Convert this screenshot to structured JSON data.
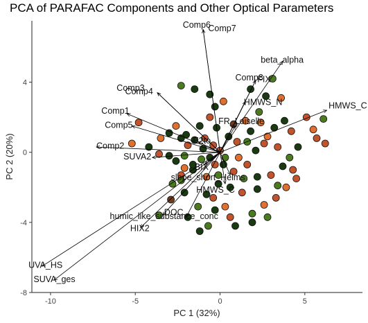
{
  "chart_data": {
    "type": "scatter",
    "title": "PCA of PARAFAC Components and Other Optical Parameters",
    "xlabel": "PC 1 (32%)",
    "ylabel": "PC 2 (20%)",
    "xlim": [
      -11.1,
      8.4
    ],
    "ylim": [
      -8.0,
      7.5
    ],
    "xticks": [
      "-10",
      "-5",
      "0",
      "5"
    ],
    "yticks": [
      "-8",
      "-4",
      "0",
      "4"
    ],
    "grid": false,
    "legend": "none",
    "point_colors": [
      "#1a3a12",
      "#4b7a1f",
      "#c2542d",
      "#e07030",
      "#6e3b1d"
    ],
    "points": [
      [
        -2.3,
        3.8,
        1
      ],
      [
        -1.5,
        3.6,
        0
      ],
      [
        -0.6,
        3.3,
        0
      ],
      [
        -0.3,
        2.6,
        0
      ],
      [
        -4.8,
        1.7,
        2
      ],
      [
        -3.0,
        1.1,
        0
      ],
      [
        -2.6,
        1.5,
        3
      ],
      [
        -5.2,
        0.5,
        3
      ],
      [
        -2.0,
        1.0,
        0
      ],
      [
        -1.5,
        0.7,
        0
      ],
      [
        -0.9,
        0.8,
        2
      ],
      [
        -0.2,
        1.4,
        0
      ],
      [
        0.2,
        2.9,
        3
      ],
      [
        1.8,
        3.6,
        0
      ],
      [
        3.1,
        4.2,
        1
      ],
      [
        2.7,
        3.2,
        0
      ],
      [
        3.6,
        3.1,
        3
      ],
      [
        2.3,
        2.3,
        1
      ],
      [
        2.4,
        1.7,
        3
      ],
      [
        3.2,
        1.4,
        0
      ],
      [
        3.8,
        1.8,
        0
      ],
      [
        4.2,
        1.2,
        2
      ],
      [
        5.1,
        2.0,
        2
      ],
      [
        5.5,
        1.3,
        3
      ],
      [
        6.1,
        1.9,
        1
      ],
      [
        5.7,
        0.8,
        2
      ],
      [
        6.2,
        0.5,
        2
      ],
      [
        4.6,
        0.3,
        0
      ],
      [
        4.1,
        -0.3,
        1
      ],
      [
        4.3,
        -1.0,
        2
      ],
      [
        3.4,
        0.3,
        2
      ],
      [
        2.8,
        0.9,
        3
      ],
      [
        1.8,
        1.2,
        0
      ],
      [
        1.6,
        0.6,
        1
      ],
      [
        2.1,
        0.1,
        0
      ],
      [
        1.1,
        -0.3,
        3
      ],
      [
        1.6,
        -0.7,
        2
      ],
      [
        0.8,
        -1.1,
        2
      ],
      [
        0.2,
        -0.7,
        0
      ],
      [
        1.4,
        -1.5,
        1
      ],
      [
        2.2,
        -1.4,
        0
      ],
      [
        3.0,
        -1.3,
        2
      ],
      [
        3.4,
        -1.9,
        1
      ],
      [
        2.2,
        -2.1,
        0
      ],
      [
        1.3,
        -2.3,
        2
      ],
      [
        0.6,
        -2.0,
        0
      ],
      [
        -0.1,
        -1.8,
        0
      ],
      [
        -0.8,
        -2.4,
        0
      ],
      [
        -0.4,
        -2.6,
        2
      ],
      [
        0.3,
        -3.1,
        3
      ],
      [
        -0.3,
        -3.3,
        0
      ],
      [
        -1.3,
        -3.1,
        1
      ],
      [
        -2.1,
        -2.3,
        0
      ],
      [
        -2.8,
        -1.8,
        1
      ],
      [
        -2.3,
        -1.3,
        2
      ],
      [
        -1.6,
        -1.0,
        0
      ],
      [
        -0.8,
        -1.4,
        3
      ],
      [
        -0.3,
        -0.7,
        2
      ],
      [
        -1.1,
        -0.4,
        1
      ],
      [
        -1.6,
        -0.7,
        0
      ],
      [
        -2.1,
        -0.2,
        1
      ],
      [
        -2.6,
        -0.5,
        0
      ],
      [
        -3.0,
        -0.2,
        0
      ],
      [
        -3.6,
        -0.1,
        2
      ],
      [
        -4.2,
        0.3,
        0
      ],
      [
        -3.5,
        0.8,
        3
      ],
      [
        -0.4,
        0.4,
        2
      ],
      [
        0.0,
        0.1,
        2
      ],
      [
        0.3,
        -0.3,
        1
      ],
      [
        -0.6,
        -0.3,
        0
      ],
      [
        1.0,
        0.6,
        2
      ],
      [
        0.5,
        0.9,
        0
      ],
      [
        -0.1,
        -1.3,
        1
      ],
      [
        -1.0,
        0.2,
        0
      ],
      [
        -1.9,
        0.4,
        2
      ],
      [
        -2.3,
        0.8,
        0
      ],
      [
        1.9,
        -3.5,
        1
      ],
      [
        2.8,
        -3.7,
        1
      ],
      [
        1.9,
        -4.0,
        0
      ],
      [
        0.9,
        -4.2,
        0
      ],
      [
        -0.7,
        -4.2,
        1
      ],
      [
        -1.9,
        -3.7,
        0
      ],
      [
        -3.6,
        -3.6,
        1
      ],
      [
        -1.2,
        -4.5,
        0
      ],
      [
        3.9,
        -2.0,
        3
      ],
      [
        4.5,
        -1.5,
        2
      ],
      [
        3.7,
        -0.8,
        0
      ],
      [
        3.3,
        -2.6,
        2
      ],
      [
        2.6,
        -3.0,
        3
      ],
      [
        -2.1,
        -0.9,
        3
      ],
      [
        -2.3,
        -1.6,
        1
      ],
      [
        0.8,
        1.6,
        4
      ],
      [
        1.5,
        1.8,
        3
      ],
      [
        -0.6,
        2.0,
        2
      ],
      [
        -1.2,
        1.5,
        0
      ],
      [
        2.6,
        0.5,
        2
      ],
      [
        0.6,
        -3.7,
        2
      ],
      [
        -2.9,
        -2.7,
        4
      ]
    ],
    "variables": [
      {
        "name": "Comp6",
        "x": -1.0,
        "y": 7.0
      },
      {
        "name": "Comp7",
        "x": -1.0,
        "y": 7.0
      },
      {
        "name": "beta_alpha",
        "x": 3.7,
        "y": 5.2
      },
      {
        "name": "Comp8",
        "x": 2.1,
        "y": 4.1
      },
      {
        "name": "FIX",
        "x": 2.1,
        "y": 4.1
      },
      {
        "name": "HMWS_N",
        "x": 1.5,
        "y": 2.9
      },
      {
        "name": "HMWS_C",
        "x": 6.3,
        "y": 2.4
      },
      {
        "name": "Comp3",
        "x": -3.7,
        "y": 3.4
      },
      {
        "name": "Comp4",
        "x": -3.7,
        "y": 3.4
      },
      {
        "name": "Comp1",
        "x": -5.5,
        "y": 2.2
      },
      {
        "name": "Comp5",
        "x": -5.2,
        "y": 1.5
      },
      {
        "name": "Comp2",
        "x": -7.3,
        "y": 0.3
      },
      {
        "name": "SUVA254",
        "x": -4.0,
        "y": -0.3
      },
      {
        "name": "E2toE3",
        "x": -1.3,
        "y": 0.6
      },
      {
        "name": "BIX",
        "x": -0.9,
        "y": -0.7
      },
      {
        "name": "HIX",
        "x": -0.9,
        "y": -0.7
      },
      {
        "name": "FR_Loiselle",
        "x": 0.9,
        "y": 1.5
      },
      {
        "name": "slope_short_Helms",
        "x": 0.6,
        "y": -1.3
      },
      {
        "name": "HMWS_C2",
        "x": 0.3,
        "y": -1.8
      },
      {
        "name": "SUVA_HS",
        "x": -10.5,
        "y": -6.5
      },
      {
        "name": "SUVA_ges",
        "x": -9.8,
        "y": -7.3
      },
      {
        "name": "HIX2",
        "x": -4.7,
        "y": -4.3
      },
      {
        "name": "humic_like_substance_conc",
        "x": -3.4,
        "y": -3.6
      },
      {
        "name": "DOC",
        "x": -2.0,
        "y": -3.7
      }
    ]
  },
  "labels": [
    {
      "text": "Comp6",
      "x": -2.2,
      "y": 7.2
    },
    {
      "text": "Comp7",
      "x": -0.7,
      "y": 6.9
    },
    {
      "text": "beta_alpha",
      "x": 2.4,
      "y": 5.1
    },
    {
      "text": "Comp8",
      "x": 0.9,
      "y": 4.1
    },
    {
      "text": "FIX",
      "x": 2.2,
      "y": 4.0
    },
    {
      "text": "HMWS_N",
      "x": 1.4,
      "y": 2.7
    },
    {
      "text": "HMWS_C",
      "x": 6.4,
      "y": 2.5
    },
    {
      "text": "Comp3",
      "x": -6.1,
      "y": 3.5
    },
    {
      "text": "Comp4",
      "x": -5.6,
      "y": 3.3
    },
    {
      "text": "Comp1",
      "x": -7.0,
      "y": 2.2
    },
    {
      "text": "Comp5",
      "x": -6.8,
      "y": 1.4
    },
    {
      "text": "Comp2",
      "x": -7.3,
      "y": 0.2
    },
    {
      "text": "SUVA2",
      "x": -5.7,
      "y": -0.4
    },
    {
      "text": "E2to",
      "x": -1.6,
      "y": 0.5
    },
    {
      "text": "BIX",
      "x": -1.5,
      "y": -1.0
    },
    {
      "text": "FR_Loiselle",
      "x": -0.1,
      "y": 1.6
    },
    {
      "text": "slope_short_Helms",
      "x": -2.9,
      "y": -1.6
    },
    {
      "text": "HMWS_C",
      "x": -1.4,
      "y": -2.3
    },
    {
      "text": "UVA_HS",
      "x": -11.3,
      "y": -6.6
    },
    {
      "text": "SUVA_ges",
      "x": -11.0,
      "y": -7.4
    },
    {
      "text": "HIX2",
      "x": -5.3,
      "y": -4.5
    },
    {
      "text": "humic_like_substance_conc",
      "x": -6.5,
      "y": -3.8
    },
    {
      "text": "DOC",
      "x": -3.3,
      "y": -3.6
    }
  ]
}
